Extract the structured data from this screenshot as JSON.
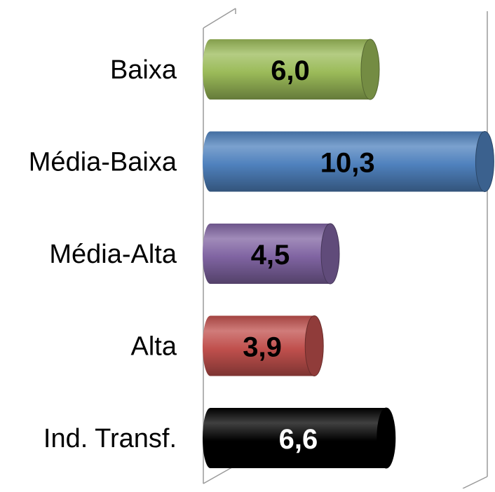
{
  "chart_data": {
    "type": "bar",
    "orientation": "horizontal",
    "style": "3d-cylinder",
    "title": "",
    "xlabel": "",
    "ylabel": "",
    "xlim": [
      0,
      10.5
    ],
    "grid": false,
    "legend": "none",
    "categories": [
      "Baixa",
      "Média-Baixa",
      "Média-Alta",
      "Alta",
      "Ind. Transf."
    ],
    "values": [
      6.0,
      10.3,
      4.5,
      3.9,
      6.6
    ],
    "value_labels": [
      "6,0",
      "10,3",
      "4,5",
      "3,9",
      "6,6"
    ],
    "colors": [
      "#9bbb59",
      "#4f81bd",
      "#8064a2",
      "#c0504d",
      "#000000"
    ],
    "label_colors": [
      "#000000",
      "#000000",
      "#000000",
      "#000000",
      "#ffffff"
    ]
  }
}
